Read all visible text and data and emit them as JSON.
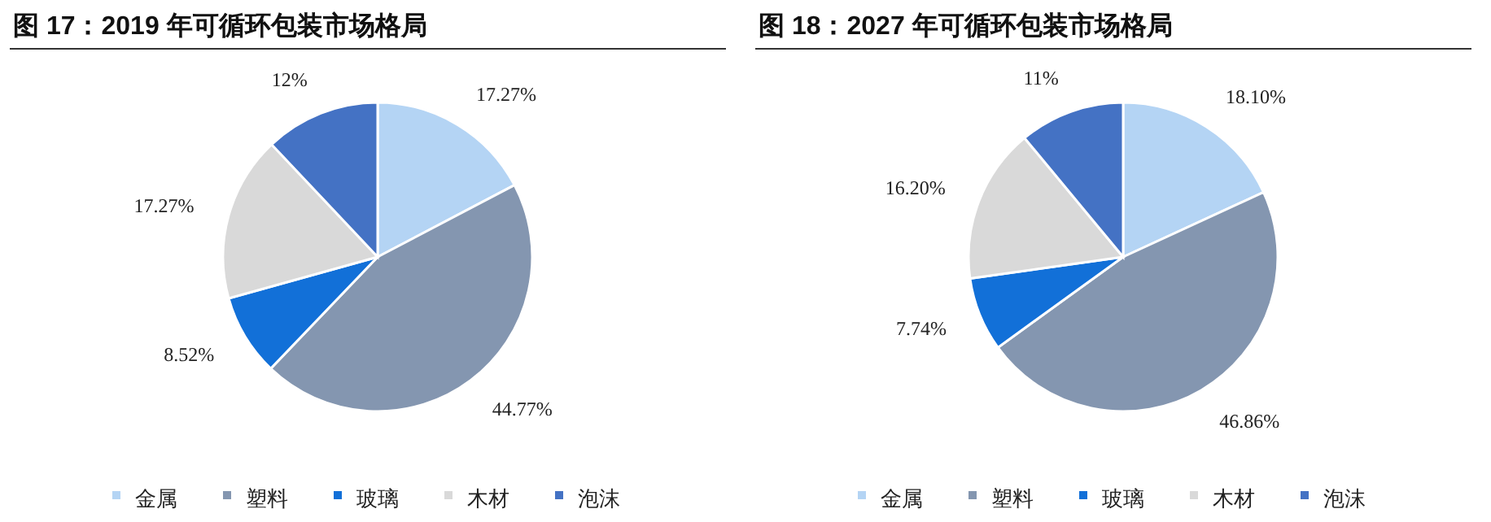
{
  "chart_data": [
    {
      "type": "pie",
      "title": "图 17：2019 年可循环包装市场格局",
      "categories": [
        "金属",
        "塑料",
        "玻璃",
        "木材",
        "泡沫"
      ],
      "values": [
        17.27,
        44.77,
        8.52,
        17.27,
        12
      ],
      "colors": [
        "#b4d4f4",
        "#8496b0",
        "#1270d8",
        "#d9d9d9",
        "#4472c4"
      ],
      "value_labels": [
        "17.27%",
        "44.77%",
        "8.52%",
        "17.27%",
        "12%"
      ],
      "legend": "bottom"
    },
    {
      "type": "pie",
      "title": "图 18：2027 年可循环包装市场格局",
      "categories": [
        "金属",
        "塑料",
        "玻璃",
        "木材",
        "泡沫"
      ],
      "values": [
        18.1,
        46.86,
        7.74,
        16.2,
        11
      ],
      "colors": [
        "#b4d4f4",
        "#8496b0",
        "#1270d8",
        "#d9d9d9",
        "#4472c4"
      ],
      "value_labels": [
        "18.10%",
        "46.86%",
        "7.74%",
        "16.20%",
        "11%"
      ],
      "legend": "bottom"
    }
  ]
}
